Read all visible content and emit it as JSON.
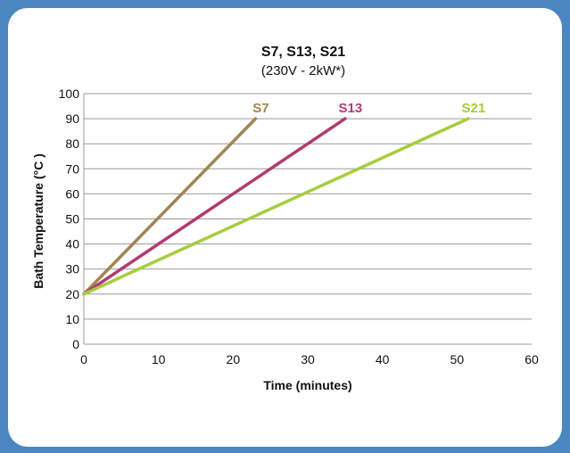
{
  "chart_data": {
    "type": "line",
    "title": "S7, S13, S21",
    "subtitle": "(230V - 2kW*)",
    "xlabel": "Time (minutes)",
    "ylabel": "Bath Temperature (°C )",
    "xlim": [
      0,
      60
    ],
    "ylim": [
      0,
      100
    ],
    "xticks": [
      0,
      10,
      20,
      30,
      40,
      50,
      60
    ],
    "yticks": [
      0,
      10,
      20,
      30,
      40,
      50,
      60,
      70,
      80,
      90,
      100
    ],
    "grid": "horizontal",
    "series": [
      {
        "name": "S7",
        "color": "#a3844f",
        "points": [
          [
            0,
            20
          ],
          [
            23,
            90
          ]
        ]
      },
      {
        "name": "S13",
        "color": "#b23a72",
        "points": [
          [
            0,
            20
          ],
          [
            35,
            90
          ]
        ]
      },
      {
        "name": "S21",
        "color": "#a6cd3e",
        "points": [
          [
            0,
            20
          ],
          [
            51.5,
            90
          ]
        ]
      }
    ]
  }
}
